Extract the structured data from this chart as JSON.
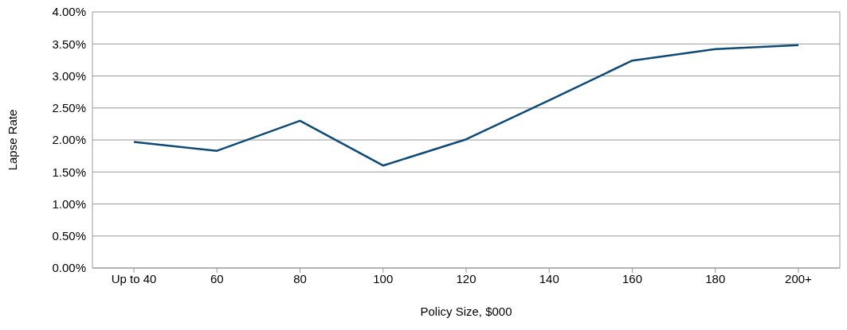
{
  "chart_data": {
    "type": "line",
    "xlabel": "Policy Size, $000",
    "ylabel": "Lapse Rate",
    "categories": [
      "Up to 40",
      "60",
      "80",
      "100",
      "120",
      "140",
      "160",
      "180",
      "200+"
    ],
    "series": [
      {
        "color": "#0e4a78",
        "values": [
          1.97,
          1.83,
          2.3,
          1.6,
          2.01,
          2.62,
          3.24,
          3.42,
          3.48
        ]
      }
    ],
    "ylim": [
      0,
      4
    ],
    "yticks": [
      {
        "value": 0,
        "label": "0.00%"
      },
      {
        "value": 0.5,
        "label": "0.50%"
      },
      {
        "value": 1,
        "label": "1.00%"
      },
      {
        "value": 1.5,
        "label": "1.50%"
      },
      {
        "value": 2,
        "label": "2.00%"
      },
      {
        "value": 2.5,
        "label": "2.50%"
      },
      {
        "value": 3,
        "label": "3.00%"
      },
      {
        "value": 3.5,
        "label": "3.50%"
      },
      {
        "value": 4,
        "label": "4.00%"
      }
    ],
    "grid": "y",
    "legend": false,
    "marker": "none",
    "line_style": "solid"
  }
}
